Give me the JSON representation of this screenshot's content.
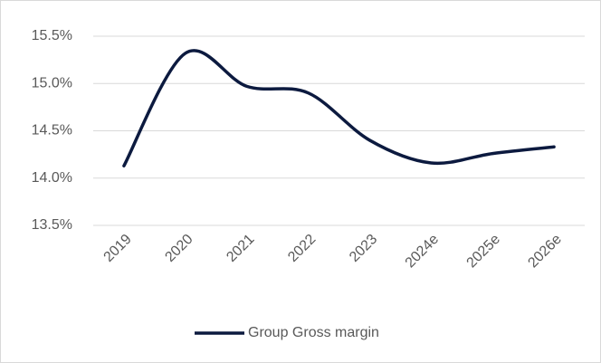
{
  "chart_data": {
    "type": "line",
    "categories": [
      "2019",
      "2020",
      "2021",
      "2022",
      "2023",
      "2024e",
      "2025e",
      "2026e"
    ],
    "series": [
      {
        "name": "Group Gross margin",
        "color": "#0c1a3f",
        "values": [
          14.13,
          15.32,
          14.97,
          14.9,
          14.4,
          14.16,
          14.26,
          14.33
        ]
      }
    ],
    "ylim": [
      13.5,
      15.5
    ],
    "yticks": [
      {
        "value": 13.5,
        "label": "13.5%"
      },
      {
        "value": 14.0,
        "label": "14.0%"
      },
      {
        "value": 14.5,
        "label": "14.5%"
      },
      {
        "value": 15.0,
        "label": "15.0%"
      },
      {
        "value": 15.5,
        "label": "15.5%"
      }
    ],
    "grid": true,
    "legend": "bottom"
  }
}
